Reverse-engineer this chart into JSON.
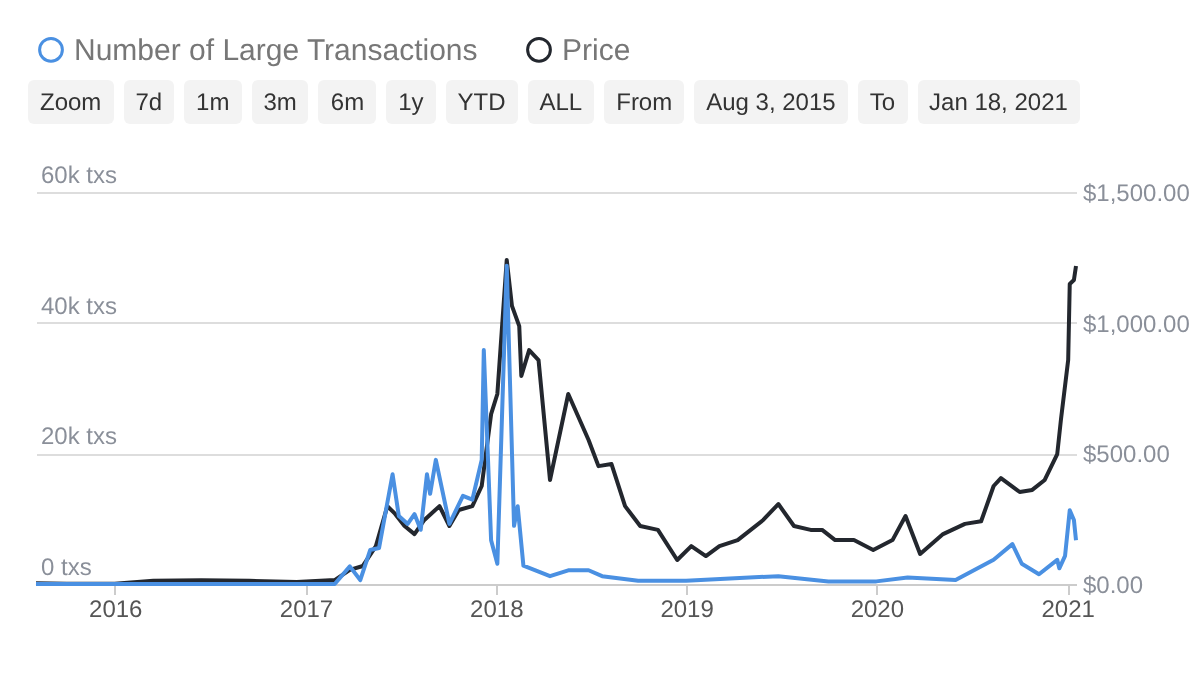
{
  "chart_data": {
    "type": "line",
    "annotations": [
      "Zoom",
      "7d",
      "1m",
      "3m",
      "6m",
      "1y",
      "YTD",
      "ALL",
      "From",
      "Aug 3, 2015",
      "To",
      "Jan 18, 2021"
    ],
    "xlim": [
      "2015-08-03",
      "2021-01-18"
    ],
    "xticks": [
      "2016",
      "2017",
      "2018",
      "2019",
      "2020",
      "2021"
    ],
    "ylim": [
      0,
      60000
    ],
    "yticks": [
      {
        "value": 0,
        "label": "0 txs"
      },
      {
        "value": 20000,
        "label": "20k txs"
      },
      {
        "value": 40000,
        "label": "40k txs"
      },
      {
        "value": 60000,
        "label": "60k txs"
      }
    ],
    "y2lim": [
      0,
      1500
    ],
    "y2ticks": [
      {
        "value": 0,
        "label": "$0.00"
      },
      {
        "value": 500,
        "label": "$500.00"
      },
      {
        "value": 1000,
        "label": "$1,000.00"
      },
      {
        "value": 1500,
        "label": "$1,500.00"
      }
    ],
    "grid": "y",
    "legend": "top left",
    "marker": "none",
    "line_style": "solid",
    "series": [
      {
        "name": "Number of Large Transactions",
        "color": "#4a90e2",
        "x": [
          "2015-08-03",
          "2016-01-01",
          "2016-06-01",
          "2017-01-01",
          "2017-02-26",
          "2017-03-27",
          "2017-04-16",
          "2017-05-05",
          "2017-05-22",
          "2017-06-17",
          "2017-06-29",
          "2017-07-16",
          "2017-07-29",
          "2017-08-10",
          "2017-08-22",
          "2017-08-28",
          "2017-09-08",
          "2017-10-04",
          "2017-10-30",
          "2017-11-17",
          "2017-12-05",
          "2017-12-09",
          "2017-12-23",
          "2018-01-04",
          "2018-01-22",
          "2018-02-05",
          "2018-02-12",
          "2018-02-23",
          "2018-04-15",
          "2018-05-20",
          "2018-06-28",
          "2018-07-24",
          "2018-10-01",
          "2019-01-01",
          "2019-06-27",
          "2019-10-01",
          "2020-01-01",
          "2020-03-01",
          "2020-06-01",
          "2020-08-13",
          "2020-09-18",
          "2020-10-06",
          "2020-11-08",
          "2020-12-13",
          "2020-12-17",
          "2020-12-28",
          "2021-01-06",
          "2021-01-14",
          "2021-01-18"
        ],
        "values": [
          0,
          0,
          0,
          0,
          0,
          2700,
          600,
          5200,
          5500,
          16800,
          10400,
          9200,
          10700,
          8300,
          16800,
          13800,
          19000,
          9200,
          13500,
          12900,
          19000,
          35800,
          6700,
          3100,
          48700,
          8900,
          11900,
          2800,
          1200,
          2100,
          2100,
          1200,
          500,
          500,
          1200,
          400,
          400,
          1000,
          600,
          3700,
          6100,
          3100,
          1500,
          3700,
          2400,
          4300,
          11300,
          9800,
          6700
        ]
      },
      {
        "name": "Price",
        "color": "#23272e",
        "axis": "y2",
        "x": [
          "2015-08-03",
          "2015-10-01",
          "2016-01-01",
          "2016-03-15",
          "2016-06-15",
          "2016-09-15",
          "2016-12-15",
          "2017-02-26",
          "2017-03-27",
          "2017-04-21",
          "2017-05-16",
          "2017-06-07",
          "2017-06-22",
          "2017-07-10",
          "2017-07-29",
          "2017-08-17",
          "2017-09-15",
          "2017-10-04",
          "2017-10-22",
          "2017-11-17",
          "2017-12-05",
          "2017-12-23",
          "2018-01-04",
          "2018-01-22",
          "2018-02-01",
          "2018-02-15",
          "2018-02-19",
          "2018-03-06",
          "2018-03-24",
          "2018-04-15",
          "2018-05-20",
          "2018-06-28",
          "2018-07-17",
          "2018-08-11",
          "2018-09-06",
          "2018-10-05",
          "2018-11-08",
          "2018-12-15",
          "2019-01-11",
          "2019-02-08",
          "2019-03-06",
          "2019-04-10",
          "2019-05-29",
          "2019-06-27",
          "2019-07-27",
          "2019-08-28",
          "2019-09-19",
          "2019-10-14",
          "2019-11-19",
          "2019-12-26",
          "2020-02-01",
          "2020-02-26",
          "2020-03-25",
          "2020-05-08",
          "2020-06-19",
          "2020-07-20",
          "2020-08-13",
          "2020-08-27",
          "2020-10-02",
          "2020-10-26",
          "2020-11-19",
          "2020-12-13",
          "2020-12-20",
          "2021-01-03",
          "2021-01-06",
          "2021-01-14",
          "2021-01-18"
        ],
        "values": [
          3,
          1,
          1,
          12,
          14,
          12,
          8,
          15,
          54,
          69,
          145,
          298,
          268,
          222,
          191,
          245,
          298,
          222,
          283,
          298,
          375,
          650,
          727,
          1240,
          1064,
          987,
          796,
          895,
          857,
          398,
          727,
          551,
          451,
          459,
          298,
          222,
          207,
          92,
          145,
          107,
          145,
          168,
          245,
          306,
          222,
          207,
          207,
          168,
          168,
          130,
          168,
          260,
          115,
          191,
          230,
          240,
          375,
          405,
          352,
          360,
          398,
          497,
          627,
          857,
          1148,
          1163,
          1217
        ]
      }
    ]
  }
}
